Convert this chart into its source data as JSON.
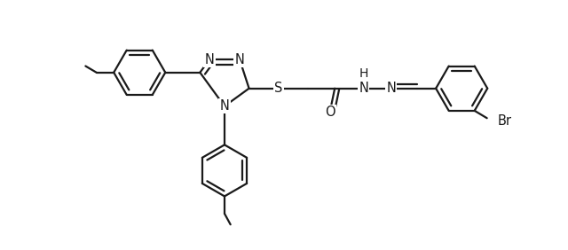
{
  "bg_color": "#ffffff",
  "line_color": "#1a1a1a",
  "line_width": 1.6,
  "fig_width": 6.4,
  "fig_height": 2.82,
  "dpi": 100,
  "font_size": 10.5,
  "canvas_xlim": [
    -0.5,
    10.5
  ],
  "canvas_ylim": [
    -2.8,
    2.2
  ]
}
